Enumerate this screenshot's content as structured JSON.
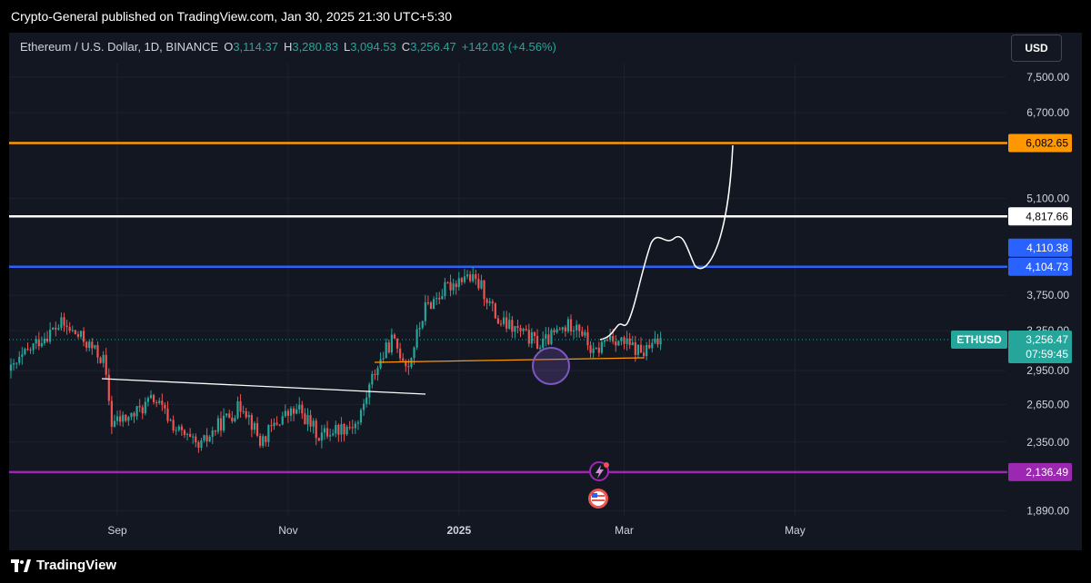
{
  "header": {
    "published": "Crypto-General published on TradingView.com, Jan 30, 2025 21:30 UTC+5:30"
  },
  "legend": {
    "symbol": "Ethereum / U.S. Dollar, 1D, BINANCE",
    "o_label": "O",
    "o": "3,114.37",
    "h_label": "H",
    "h": "3,280.83",
    "l_label": "L",
    "l": "3,094.53",
    "c_label": "C",
    "c": "3,256.47",
    "change": "+142.03 (+4.56%)"
  },
  "currency_button": "USD",
  "footer": {
    "brand": "TradingView"
  },
  "colors": {
    "up": "#26a69a",
    "down": "#ef5350",
    "orange": "#ff9800",
    "white": "#ffffff",
    "blue": "#2962ff",
    "purple": "#9c27b0",
    "background": "#131722"
  },
  "chart_data": {
    "type": "candlestick",
    "symbol": "ETHUSD",
    "y_axis": {
      "scale": "log",
      "ticks": [
        "7,500.00",
        "6,700.00",
        "5,100.00",
        "3,750.00",
        "3,350.00",
        "2,950.00",
        "2,650.00",
        "2,350.00",
        "1,890.00"
      ],
      "tick_values": [
        7500,
        6700,
        5100,
        3750,
        3350,
        2950,
        2650,
        2350,
        1890
      ]
    },
    "x_axis": {
      "ticks": [
        "Sep",
        "Nov",
        "2025",
        "Mar",
        "May"
      ]
    },
    "horizontal_levels": [
      {
        "value": 6082.65,
        "label": "6,082.65",
        "color": "#ff9800"
      },
      {
        "value": 4817.66,
        "label": "4,817.66",
        "color": "#ffffff"
      },
      {
        "value": 4104.73,
        "label": "4,104.73",
        "color": "#2962ff"
      },
      {
        "value": 2136.49,
        "label": "2,136.49",
        "color": "#9c27b0"
      }
    ],
    "extra_price_labels": [
      {
        "value": 4110.38,
        "label": "4,110.38",
        "color": "#2962ff"
      }
    ],
    "current_price": {
      "symbol": "ETHUSD",
      "price": "3,256.47",
      "countdown": "07:59:45",
      "value": 3256.47
    },
    "trendlines": [
      {
        "color": "#ffffff",
        "from": [
          2750,
          "Aug 14"
        ],
        "to": [
          2560,
          "Dec 14"
        ]
      },
      {
        "color": "#ff9800",
        "from": [
          3090,
          "Nov 14"
        ],
        "to": [
          3150,
          "Feb 15"
        ]
      }
    ],
    "projection_path_color": "#ffffff",
    "annotation_circle": {
      "color": "#7e57c2",
      "near_value": 3000
    }
  }
}
